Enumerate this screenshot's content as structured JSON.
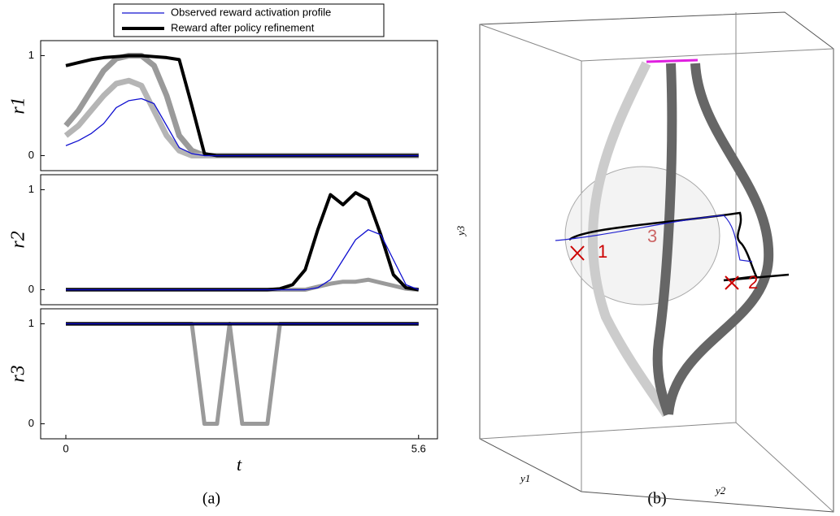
{
  "chart_data": [
    {
      "type": "line",
      "ylabel": "r1",
      "x": [
        0,
        0.2,
        0.4,
        0.6,
        0.8,
        1.0,
        1.2,
        1.4,
        1.6,
        1.8,
        2.0,
        2.2,
        2.4,
        2.6,
        2.8,
        3.0,
        3.2,
        3.4,
        3.6,
        3.8,
        4.0,
        4.2,
        4.4,
        4.6,
        4.8,
        5.0,
        5.2,
        5.4,
        5.6
      ],
      "xlim": [
        -0.4,
        5.9
      ],
      "ylim": [
        -0.15,
        1.15
      ],
      "yticks": [
        0,
        1
      ],
      "legend": "top",
      "series": [
        {
          "color": "#9a9a9a",
          "line_width": 7,
          "values": [
            0.3,
            0.45,
            0.65,
            0.85,
            0.97,
            1.0,
            1.0,
            0.9,
            0.6,
            0.2,
            0.05,
            0,
            0,
            0,
            0,
            0,
            0,
            0,
            0,
            0,
            0,
            0,
            0,
            0,
            0,
            0,
            0,
            0,
            0
          ]
        },
        {
          "color": "#b5b5b5",
          "line_width": 7,
          "values": [
            0.2,
            0.3,
            0.45,
            0.6,
            0.72,
            0.75,
            0.7,
            0.45,
            0.2,
            0.05,
            0,
            0,
            0,
            0,
            0,
            0,
            0,
            0,
            0,
            0,
            0,
            0,
            0,
            0,
            0,
            0,
            0,
            0,
            0
          ]
        },
        {
          "name": "Reward after policy refinement",
          "color": "#000000",
          "line_width": 4,
          "values": [
            0.9,
            0.93,
            0.96,
            0.98,
            0.99,
            1.0,
            1.0,
            0.99,
            0.98,
            0.96,
            0.5,
            0.02,
            0,
            0,
            0,
            0,
            0,
            0,
            0,
            0,
            0,
            0,
            0,
            0,
            0,
            0,
            0,
            0,
            0
          ]
        },
        {
          "name": "Observed reward activation profile",
          "color": "#1010d0",
          "line_width": 1.3,
          "values": [
            0.1,
            0.15,
            0.22,
            0.32,
            0.48,
            0.55,
            0.57,
            0.52,
            0.3,
            0.08,
            0.02,
            0,
            0,
            0,
            0,
            0,
            0,
            0,
            0,
            0,
            0,
            0,
            0,
            0,
            0,
            0,
            0,
            0,
            0
          ]
        }
      ]
    },
    {
      "type": "line",
      "ylabel": "r2",
      "x": [
        0,
        0.2,
        0.4,
        0.6,
        0.8,
        1.0,
        1.2,
        1.4,
        1.6,
        1.8,
        2.0,
        2.2,
        2.4,
        2.6,
        2.8,
        3.0,
        3.2,
        3.4,
        3.6,
        3.8,
        4.0,
        4.2,
        4.4,
        4.6,
        4.8,
        5.0,
        5.2,
        5.4,
        5.6
      ],
      "xlim": [
        -0.4,
        5.9
      ],
      "ylim": [
        -0.15,
        1.15
      ],
      "yticks": [
        0,
        1
      ],
      "series": [
        {
          "color": "#9a9a9a",
          "line_width": 5,
          "values": [
            0,
            0,
            0,
            0,
            0,
            0,
            0,
            0,
            0,
            0,
            0,
            0,
            0,
            0,
            0,
            0,
            0,
            0,
            0,
            0,
            0.03,
            0.06,
            0.08,
            0.08,
            0.1,
            0.07,
            0.04,
            0.01,
            0
          ]
        },
        {
          "color": "#000000",
          "line_width": 4,
          "values": [
            0,
            0,
            0,
            0,
            0,
            0,
            0,
            0,
            0,
            0,
            0,
            0,
            0,
            0,
            0,
            0,
            0,
            0.01,
            0.05,
            0.2,
            0.6,
            0.95,
            0.85,
            0.97,
            0.9,
            0.55,
            0.15,
            0.02,
            0
          ]
        },
        {
          "color": "#1010d0",
          "line_width": 1.3,
          "values": [
            0,
            0,
            0,
            0,
            0,
            0,
            0,
            0,
            0,
            0,
            0,
            0,
            0,
            0,
            0,
            0,
            0,
            0,
            0,
            0,
            0.02,
            0.1,
            0.3,
            0.5,
            0.6,
            0.55,
            0.3,
            0.05,
            0
          ]
        }
      ]
    },
    {
      "type": "line",
      "ylabel": "r3",
      "xlabel": "t",
      "x": [
        0,
        0.2,
        0.4,
        0.6,
        0.8,
        1.0,
        1.2,
        1.4,
        1.6,
        1.8,
        2.0,
        2.2,
        2.4,
        2.6,
        2.8,
        3.0,
        3.2,
        3.4,
        3.6,
        3.8,
        4.0,
        4.2,
        4.4,
        4.6,
        4.8,
        5.0,
        5.2,
        5.4,
        5.6
      ],
      "xlim": [
        -0.4,
        5.9
      ],
      "ylim": [
        -0.15,
        1.15
      ],
      "yticks": [
        0,
        1
      ],
      "xticks": [
        0,
        5.6
      ],
      "series": [
        {
          "color": "#9a9a9a",
          "line_width": 5,
          "values": [
            1,
            1,
            1,
            1,
            1,
            1,
            1,
            1,
            1,
            1,
            1,
            0,
            0,
            1,
            0,
            0,
            0,
            1,
            1,
            1,
            1,
            1,
            1,
            1,
            1,
            1,
            1,
            1,
            1
          ]
        },
        {
          "color": "#000000",
          "line_width": 4,
          "values": [
            1,
            1,
            1,
            1,
            1,
            1,
            1,
            1,
            1,
            1,
            1,
            1,
            1,
            1,
            1,
            1,
            1,
            1,
            1,
            1,
            1,
            1,
            1,
            1,
            1,
            1,
            1,
            1,
            1
          ]
        },
        {
          "color": "#1010d0",
          "line_width": 1.3,
          "values": [
            1,
            1,
            1,
            1,
            1,
            1,
            1,
            1,
            1,
            1,
            1,
            1,
            1,
            1,
            1,
            1,
            1,
            1,
            1,
            1,
            1,
            1,
            1,
            1,
            1,
            1,
            1,
            1,
            1
          ]
        }
      ]
    }
  ],
  "figure": {
    "captions": [
      "(a)",
      "(b)"
    ],
    "panel_b": {
      "axis_labels": [
        "y1",
        "y2",
        "y3"
      ],
      "markers": [
        "1",
        "2",
        "3"
      ]
    }
  }
}
